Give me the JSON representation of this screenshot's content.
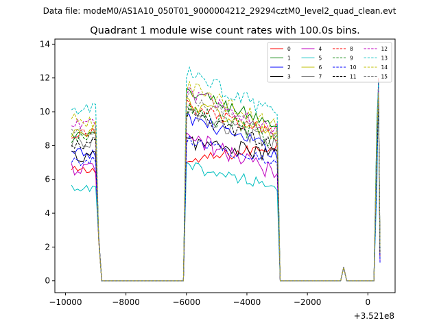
{
  "chart_data": {
    "type": "line",
    "suptitle": "Data file: modeM0/AS1A10_050T01_9000004212_29294cztM0_level2_quad_clean.evt",
    "title": "Quadrant 1 module wise count rates with 100.0s bins.",
    "xlabel": "",
    "ylabel": "",
    "x_offset_label": "+3.521e8",
    "xlim": [
      -10350,
      900
    ],
    "ylim": [
      -0.7,
      14.3
    ],
    "x_ticks": [
      -10000,
      -8000,
      -6000,
      -4000,
      -2000,
      0
    ],
    "x_tick_labels": [
      "−10000",
      "−8000",
      "−6000",
      "−4000",
      "−2000",
      "0"
    ],
    "y_ticks": [
      0,
      2,
      4,
      6,
      8,
      10,
      12,
      14
    ],
    "y_tick_labels": [
      "0",
      "2",
      "4",
      "6",
      "8",
      "10",
      "12",
      "14"
    ],
    "grid": false,
    "legend_position": "upper right",
    "legend_columns": 4,
    "segments": [
      {
        "start": -9800,
        "end": -9000
      },
      {
        "start": -6000,
        "end": -3000
      },
      {
        "start": 300,
        "end": 400
      }
    ],
    "series": [
      {
        "name": "0",
        "color": "#ff0000",
        "dash": "solid",
        "levels": [
          6.5,
          7.0,
          8.0
        ],
        "last": 6.8
      },
      {
        "name": "1",
        "color": "#008000",
        "dash": "solid",
        "levels": [
          8.6,
          11.3,
          9.2
        ],
        "last": 9.3
      },
      {
        "name": "2",
        "color": "#0000ff",
        "dash": "solid",
        "levels": [
          7.5,
          9.8,
          7.6
        ],
        "last": 7.2
      },
      {
        "name": "3",
        "color": "#000000",
        "dash": "solid",
        "levels": [
          7.4,
          8.3,
          7.4
        ],
        "last": 6.2
      },
      {
        "name": "4",
        "color": "#bf00bf",
        "dash": "solid",
        "levels": [
          6.6,
          8.5,
          6.4
        ],
        "last": 6.3
      },
      {
        "name": "5",
        "color": "#00bfbf",
        "dash": "solid",
        "levels": [
          5.4,
          6.8,
          5.6
        ],
        "last": 5.7
      },
      {
        "name": "6",
        "color": "#bfbf00",
        "dash": "solid",
        "levels": [
          8.8,
          10.6,
          8.5
        ],
        "last": 8.2
      },
      {
        "name": "7",
        "color": "#808080",
        "dash": "solid",
        "levels": [
          8.2,
          10.0,
          8.0
        ],
        "last": 7.8
      },
      {
        "name": "8",
        "color": "#ff0000",
        "dash": "dashed",
        "levels": [
          8.7,
          10.3,
          8.6
        ],
        "last": 8.4
      },
      {
        "name": "9",
        "color": "#008000",
        "dash": "dashed",
        "levels": [
          8.4,
          10.2,
          8.3
        ],
        "last": 8.5
      },
      {
        "name": "10",
        "color": "#0000ff",
        "dash": "dashed",
        "levels": [
          7.1,
          8.4,
          6.9
        ],
        "last": 6.7
      },
      {
        "name": "11",
        "color": "#000000",
        "dash": "dashed",
        "levels": [
          8.1,
          9.9,
          8.0
        ],
        "last": 8.1
      },
      {
        "name": "12",
        "color": "#bf00bf",
        "dash": "dashed",
        "levels": [
          9.2,
          11.2,
          9.0
        ],
        "last": 8.9
      },
      {
        "name": "13",
        "color": "#00bfbf",
        "dash": "dashed",
        "levels": [
          10.1,
          12.3,
          9.8
        ],
        "last": 9.4
      },
      {
        "name": "14",
        "color": "#bfbf00",
        "dash": "dashed",
        "levels": [
          9.5,
          11.4,
          9.1
        ],
        "last": 8.9
      },
      {
        "name": "15",
        "color": "#808080",
        "dash": "dashed",
        "levels": [
          8.9,
          10.9,
          8.7
        ],
        "last": 8.6
      }
    ],
    "small_peak": {
      "x": -800,
      "y": 0.8
    },
    "final_peak": {
      "x": 300,
      "y": 11.5
    },
    "final_end": {
      "x": 400
    }
  }
}
